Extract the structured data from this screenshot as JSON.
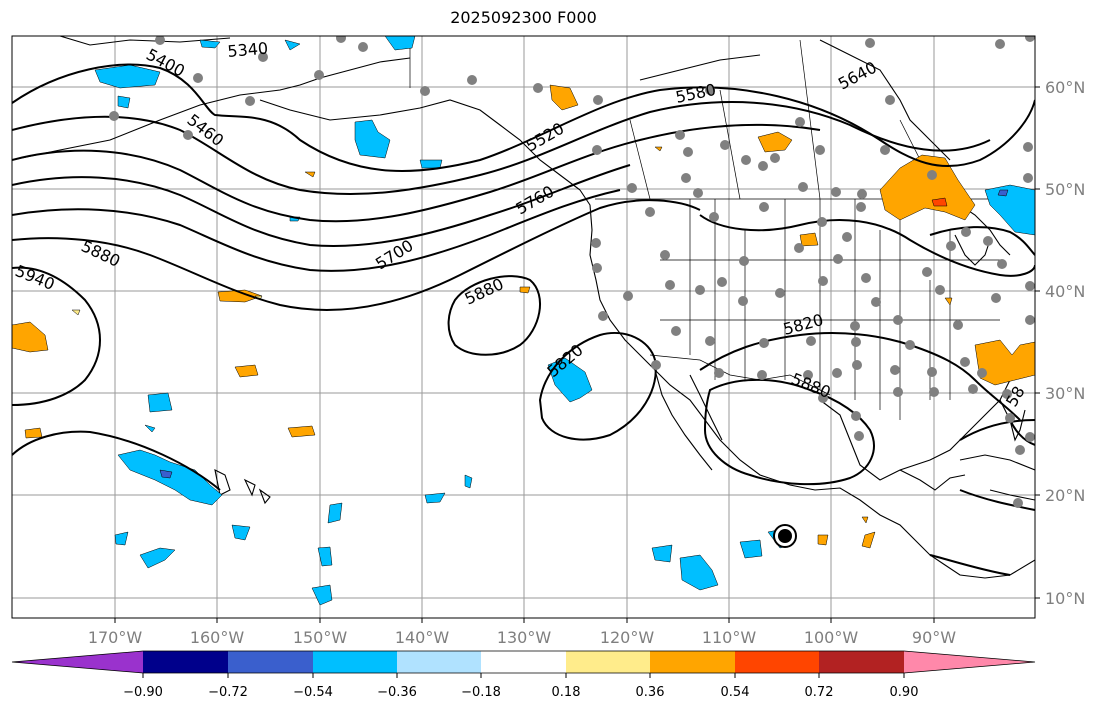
{
  "title": "2025092300 F000",
  "lon_labels": [
    "170°W",
    "160°W",
    "150°W",
    "140°W",
    "130°W",
    "120°W",
    "110°W",
    "100°W",
    "90°W"
  ],
  "lat_labels": [
    "60°N",
    "50°N",
    "40°N",
    "30°N",
    "20°N",
    "10°N"
  ],
  "contour_labels": [
    "5340",
    "5400",
    "5460",
    "5520",
    "5580",
    "5640",
    "5700",
    "5760",
    "5880",
    "5940",
    "5880",
    "5820",
    "5820",
    "5880",
    "58"
  ],
  "colorbar": {
    "tick_labels": [
      "−0.90",
      "−0.72",
      "−0.54",
      "−0.36",
      "−0.18",
      "0.18",
      "0.36",
      "0.54",
      "0.72",
      "0.90"
    ],
    "colors": [
      "#9a32cd",
      "#00008b",
      "#3a5fcd",
      "#00bfff",
      "#b0e2ff",
      "#ffffff",
      "#ffec8b",
      "#ffa500",
      "#ff4500",
      "#b22222",
      "#ff88aa"
    ]
  }
}
